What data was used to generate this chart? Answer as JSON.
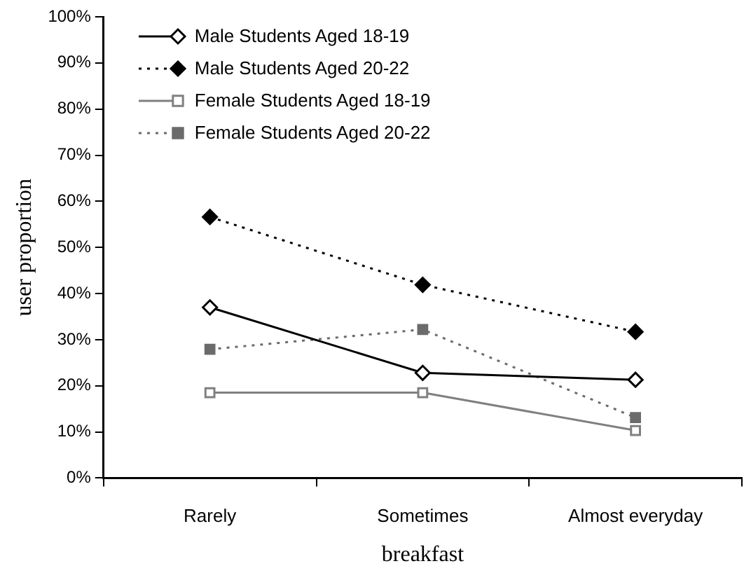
{
  "chart_data": {
    "type": "line",
    "xlabel": "breakfast",
    "ylabel": "user proportion",
    "categories": [
      "Rarely",
      "Sometimes",
      "Almost everyday"
    ],
    "ylim": [
      0,
      100
    ],
    "yticks": [
      {
        "value": 0,
        "label": "0%"
      },
      {
        "value": 10,
        "label": "10%"
      },
      {
        "value": 20,
        "label": "20%"
      },
      {
        "value": 30,
        "label": "30%"
      },
      {
        "value": 40,
        "label": "40%"
      },
      {
        "value": 50,
        "label": "50%"
      },
      {
        "value": 60,
        "label": "60%"
      },
      {
        "value": 70,
        "label": "70%"
      },
      {
        "value": 80,
        "label": "80%"
      },
      {
        "value": 90,
        "label": "90%"
      },
      {
        "value": 100,
        "label": "100%"
      }
    ],
    "grid": false,
    "legend": "top left",
    "series": [
      {
        "name": "Male Students Aged 18-19",
        "color": "#000000",
        "marker": "diamond",
        "line_style": "solid",
        "values": [
          37,
          22.8,
          21.3
        ]
      },
      {
        "name": "Male Students Aged 20-22",
        "color": "#000000",
        "marker": "diamond",
        "line_style": "dotted",
        "values": [
          56.6,
          41.9,
          31.7
        ]
      },
      {
        "name": "Female Students Aged 18-19",
        "color": "#808080",
        "marker": "square",
        "line_style": "solid",
        "values": [
          18.5,
          18.5,
          10.3
        ]
      },
      {
        "name": "Female Students Aged 20-22",
        "color": "#6b6b6b",
        "marker": "square",
        "line_style": "dotted",
        "values": [
          27.9,
          32.2,
          13.1
        ]
      }
    ]
  }
}
